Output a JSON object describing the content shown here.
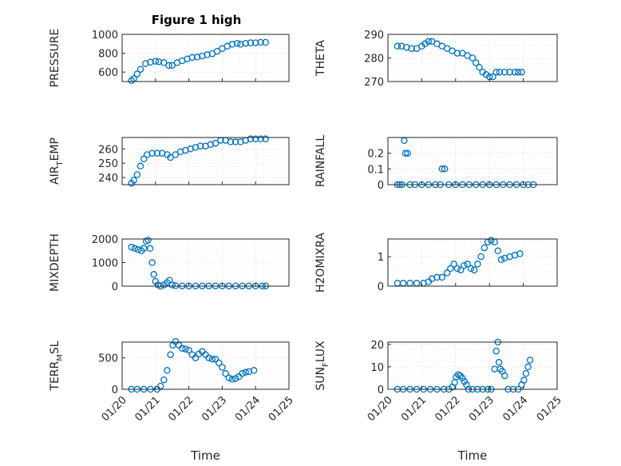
{
  "figure": {
    "title": "Figure 1 high",
    "marker_color": "#0072BD",
    "grid": true,
    "marker": "circle"
  },
  "chart_data": [
    {
      "type": "scatter",
      "id": "pressure",
      "ylabel": "PRESSURE",
      "ylim": [
        500,
        1000
      ],
      "yticks": [
        600,
        800,
        1000
      ],
      "xlim": [
        "2020-01-20",
        "2020-01-25"
      ],
      "points": [
        [
          0.28,
          510
        ],
        [
          0.35,
          530
        ],
        [
          0.45,
          580
        ],
        [
          0.55,
          630
        ],
        [
          0.7,
          690
        ],
        [
          0.85,
          705
        ],
        [
          1.0,
          715
        ],
        [
          1.1,
          710
        ],
        [
          1.25,
          700
        ],
        [
          1.4,
          670
        ],
        [
          1.5,
          670
        ],
        [
          1.65,
          700
        ],
        [
          1.8,
          720
        ],
        [
          1.95,
          740
        ],
        [
          2.1,
          755
        ],
        [
          2.25,
          760
        ],
        [
          2.4,
          770
        ],
        [
          2.55,
          785
        ],
        [
          2.7,
          795
        ],
        [
          2.85,
          820
        ],
        [
          3.0,
          850
        ],
        [
          3.15,
          875
        ],
        [
          3.3,
          895
        ],
        [
          3.45,
          905
        ],
        [
          3.55,
          895
        ],
        [
          3.7,
          905
        ],
        [
          3.85,
          910
        ],
        [
          4.0,
          910
        ],
        [
          4.15,
          915
        ],
        [
          4.3,
          915
        ]
      ]
    },
    {
      "type": "scatter",
      "id": "theta",
      "ylabel": "THETA",
      "ylim": [
        270,
        290
      ],
      "yticks": [
        270,
        280,
        290
      ],
      "xlim": [
        "2020-01-20",
        "2020-01-25"
      ],
      "points": [
        [
          0.28,
          285
        ],
        [
          0.4,
          285
        ],
        [
          0.55,
          284.5
        ],
        [
          0.7,
          284
        ],
        [
          0.85,
          284
        ],
        [
          1.0,
          285
        ],
        [
          1.1,
          286
        ],
        [
          1.2,
          287
        ],
        [
          1.3,
          287
        ],
        [
          1.45,
          286
        ],
        [
          1.6,
          285
        ],
        [
          1.75,
          284
        ],
        [
          1.9,
          283
        ],
        [
          2.05,
          282
        ],
        [
          2.2,
          282
        ],
        [
          2.35,
          281
        ],
        [
          2.5,
          280
        ],
        [
          2.6,
          278
        ],
        [
          2.7,
          276
        ],
        [
          2.8,
          274
        ],
        [
          2.9,
          273
        ],
        [
          3.0,
          272
        ],
        [
          3.1,
          272
        ],
        [
          3.2,
          274
        ],
        [
          3.3,
          274
        ],
        [
          3.45,
          274
        ],
        [
          3.6,
          274
        ],
        [
          3.75,
          274
        ],
        [
          3.85,
          274
        ],
        [
          3.95,
          274
        ]
      ]
    },
    {
      "type": "scatter",
      "id": "air_temp",
      "ylabel": "AIR",
      "ylabel_sub": "T",
      "ylabel_tail": "EMP",
      "ylim": [
        235,
        268
      ],
      "yticks": [
        240,
        250,
        260
      ],
      "xlim": [
        "2020-01-20",
        "2020-01-25"
      ],
      "points": [
        [
          0.28,
          236
        ],
        [
          0.35,
          238
        ],
        [
          0.45,
          242
        ],
        [
          0.55,
          248
        ],
        [
          0.65,
          253
        ],
        [
          0.75,
          256
        ],
        [
          0.9,
          257
        ],
        [
          1.05,
          257
        ],
        [
          1.2,
          257
        ],
        [
          1.35,
          256
        ],
        [
          1.45,
          254
        ],
        [
          1.6,
          256
        ],
        [
          1.75,
          258
        ],
        [
          1.9,
          259
        ],
        [
          2.05,
          260
        ],
        [
          2.2,
          261
        ],
        [
          2.35,
          262
        ],
        [
          2.5,
          262
        ],
        [
          2.65,
          263
        ],
        [
          2.8,
          264
        ],
        [
          2.95,
          266
        ],
        [
          3.1,
          266
        ],
        [
          3.25,
          265
        ],
        [
          3.4,
          265
        ],
        [
          3.55,
          265
        ],
        [
          3.7,
          266
        ],
        [
          3.85,
          267
        ],
        [
          4.0,
          267
        ],
        [
          4.15,
          267
        ],
        [
          4.3,
          267
        ]
      ]
    },
    {
      "type": "scatter",
      "id": "rainfall",
      "ylabel": "RAINFALL",
      "ylim": [
        0,
        0.3
      ],
      "yticks": [
        0,
        0.1,
        0.2
      ],
      "xlim": [
        "2020-01-20",
        "2020-01-25"
      ],
      "points": [
        [
          0.28,
          0
        ],
        [
          0.35,
          0
        ],
        [
          0.42,
          0
        ],
        [
          0.48,
          0.28
        ],
        [
          0.52,
          0.2
        ],
        [
          0.58,
          0.2
        ],
        [
          0.65,
          0
        ],
        [
          0.8,
          0
        ],
        [
          1.0,
          0
        ],
        [
          1.2,
          0
        ],
        [
          1.4,
          0
        ],
        [
          1.55,
          0
        ],
        [
          1.6,
          0.1
        ],
        [
          1.68,
          0.1
        ],
        [
          1.8,
          0
        ],
        [
          2.0,
          0
        ],
        [
          2.2,
          0
        ],
        [
          2.4,
          0
        ],
        [
          2.6,
          0
        ],
        [
          2.8,
          0
        ],
        [
          3.0,
          0
        ],
        [
          3.2,
          0
        ],
        [
          3.4,
          0
        ],
        [
          3.6,
          0
        ],
        [
          3.8,
          0
        ],
        [
          4.0,
          0
        ],
        [
          4.15,
          0
        ],
        [
          4.3,
          0
        ]
      ]
    },
    {
      "type": "scatter",
      "id": "mixdepth",
      "ylabel": "MIXDEPTH",
      "ylim": [
        0,
        2000
      ],
      "yticks": [
        0,
        1000,
        2000
      ],
      "xlim": [
        "2020-01-20",
        "2020-01-25"
      ],
      "points": [
        [
          0.28,
          1650
        ],
        [
          0.38,
          1600
        ],
        [
          0.48,
          1550
        ],
        [
          0.58,
          1500
        ],
        [
          0.65,
          1600
        ],
        [
          0.72,
          1900
        ],
        [
          0.78,
          1950
        ],
        [
          0.84,
          1600
        ],
        [
          0.9,
          1000
        ],
        [
          0.95,
          500
        ],
        [
          1.0,
          200
        ],
        [
          1.08,
          50
        ],
        [
          1.15,
          0
        ],
        [
          1.25,
          50
        ],
        [
          1.35,
          150
        ],
        [
          1.42,
          250
        ],
        [
          1.5,
          50
        ],
        [
          1.6,
          20
        ],
        [
          1.8,
          10
        ],
        [
          2.0,
          10
        ],
        [
          2.2,
          10
        ],
        [
          2.4,
          10
        ],
        [
          2.6,
          10
        ],
        [
          2.8,
          10
        ],
        [
          3.0,
          10
        ],
        [
          3.2,
          10
        ],
        [
          3.4,
          10
        ],
        [
          3.6,
          10
        ],
        [
          3.8,
          10
        ],
        [
          4.0,
          10
        ],
        [
          4.2,
          10
        ],
        [
          4.3,
          10
        ]
      ]
    },
    {
      "type": "scatter",
      "id": "h2omixra",
      "ylabel": "H2OMIXRA",
      "ylim": [
        0,
        1.6
      ],
      "yticks": [
        0,
        1
      ],
      "xlim": [
        "2020-01-20",
        "2020-01-25"
      ],
      "points": [
        [
          0.28,
          0.1
        ],
        [
          0.45,
          0.1
        ],
        [
          0.65,
          0.1
        ],
        [
          0.85,
          0.1
        ],
        [
          1.05,
          0.1
        ],
        [
          1.2,
          0.15
        ],
        [
          1.3,
          0.25
        ],
        [
          1.45,
          0.3
        ],
        [
          1.6,
          0.3
        ],
        [
          1.75,
          0.45
        ],
        [
          1.85,
          0.6
        ],
        [
          1.95,
          0.75
        ],
        [
          2.05,
          0.6
        ],
        [
          2.15,
          0.55
        ],
        [
          2.25,
          0.7
        ],
        [
          2.35,
          0.75
        ],
        [
          2.45,
          0.6
        ],
        [
          2.55,
          0.55
        ],
        [
          2.65,
          0.75
        ],
        [
          2.75,
          1.0
        ],
        [
          2.85,
          1.3
        ],
        [
          2.95,
          1.5
        ],
        [
          3.05,
          1.55
        ],
        [
          3.15,
          1.5
        ],
        [
          3.25,
          1.2
        ],
        [
          3.35,
          0.9
        ],
        [
          3.45,
          0.95
        ],
        [
          3.6,
          1.0
        ],
        [
          3.75,
          1.05
        ],
        [
          3.9,
          1.1
        ]
      ]
    },
    {
      "type": "scatter",
      "id": "terr_msl",
      "ylabel": "TERR",
      "ylabel_sub": "M",
      "ylabel_tail": "SL",
      "ylim": [
        0,
        750
      ],
      "yticks": [
        0,
        500
      ],
      "xlim": [
        "2020-01-20",
        "2020-01-25"
      ],
      "points": [
        [
          0.28,
          0
        ],
        [
          0.45,
          0
        ],
        [
          0.65,
          0
        ],
        [
          0.85,
          0
        ],
        [
          1.05,
          0
        ],
        [
          1.15,
          50
        ],
        [
          1.25,
          150
        ],
        [
          1.35,
          300
        ],
        [
          1.45,
          550
        ],
        [
          1.52,
          700
        ],
        [
          1.6,
          760
        ],
        [
          1.7,
          700
        ],
        [
          1.8,
          650
        ],
        [
          1.9,
          640
        ],
        [
          2.0,
          620
        ],
        [
          2.1,
          550
        ],
        [
          2.2,
          500
        ],
        [
          2.3,
          560
        ],
        [
          2.4,
          600
        ],
        [
          2.5,
          550
        ],
        [
          2.6,
          500
        ],
        [
          2.7,
          480
        ],
        [
          2.8,
          480
        ],
        [
          2.9,
          420
        ],
        [
          3.0,
          350
        ],
        [
          3.1,
          250
        ],
        [
          3.2,
          180
        ],
        [
          3.3,
          160
        ],
        [
          3.4,
          170
        ],
        [
          3.5,
          200
        ],
        [
          3.6,
          250
        ],
        [
          3.7,
          270
        ],
        [
          3.8,
          280
        ],
        [
          3.95,
          300
        ]
      ]
    },
    {
      "type": "scatter",
      "id": "sun_flux",
      "ylabel": "SUN",
      "ylabel_sub": "F",
      "ylabel_tail": "LUX",
      "ylim": [
        0,
        21
      ],
      "yticks": [
        0,
        10,
        20
      ],
      "xlim": [
        "2020-01-20",
        "2020-01-25"
      ],
      "points": [
        [
          0.28,
          0
        ],
        [
          0.45,
          0
        ],
        [
          0.65,
          0
        ],
        [
          0.85,
          0
        ],
        [
          1.05,
          0
        ],
        [
          1.25,
          0
        ],
        [
          1.45,
          0
        ],
        [
          1.65,
          0
        ],
        [
          1.8,
          0
        ],
        [
          1.9,
          1
        ],
        [
          1.97,
          3
        ],
        [
          2.02,
          5.5
        ],
        [
          2.08,
          6.5
        ],
        [
          2.14,
          6
        ],
        [
          2.2,
          5
        ],
        [
          2.26,
          3.5
        ],
        [
          2.32,
          2
        ],
        [
          2.38,
          0
        ],
        [
          2.5,
          0
        ],
        [
          2.65,
          0
        ],
        [
          2.8,
          0
        ],
        [
          2.95,
          0
        ],
        [
          3.05,
          0
        ],
        [
          3.15,
          9
        ],
        [
          3.2,
          17
        ],
        [
          3.25,
          21
        ],
        [
          3.28,
          12
        ],
        [
          3.32,
          9
        ],
        [
          3.38,
          8
        ],
        [
          3.45,
          6
        ],
        [
          3.55,
          0
        ],
        [
          3.7,
          0
        ],
        [
          3.85,
          0
        ],
        [
          3.95,
          2
        ],
        [
          4.02,
          4
        ],
        [
          4.08,
          7
        ],
        [
          4.14,
          10
        ],
        [
          4.2,
          13
        ]
      ]
    }
  ],
  "x_axis": {
    "tick_labels": [
      "01/20",
      "01/21",
      "01/22",
      "01/23",
      "01/24",
      "01/25"
    ],
    "label": "Time"
  }
}
